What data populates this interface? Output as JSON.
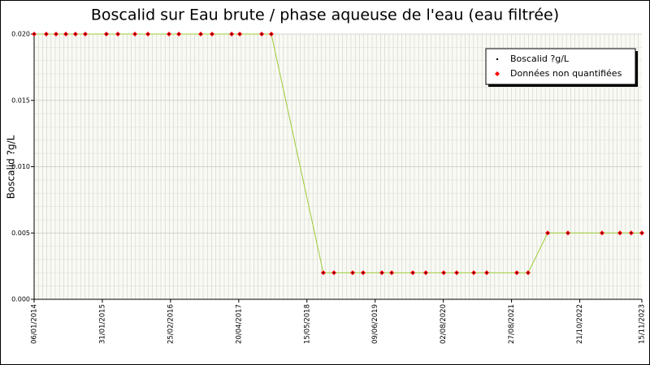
{
  "chart_data": {
    "type": "line",
    "title": "Boscalid sur Eau brute / phase aqueuse de l'eau (eau filtrée)",
    "y_label": "Boscalid ?g/L",
    "x": [
      0,
      72,
      130,
      188,
      245,
      303,
      428,
      496,
      597,
      674,
      799,
      857,
      987,
      1054,
      1170,
      1218,
      1348,
      1405,
      1713,
      1776,
      1887,
      1949,
      2060,
      2118,
      2243,
      2320,
      2426,
      2503,
      2604,
      2681,
      2859,
      2926,
      3042,
      3162,
      3364,
      3470,
      3537,
      3600
    ],
    "series": [
      {
        "name": "Boscalid ?g/L",
        "color": "#99cc33",
        "marker_color": "#000000",
        "values": [
          0.02,
          0.02,
          0.02,
          0.02,
          0.02,
          0.02,
          0.02,
          0.02,
          0.02,
          0.02,
          0.02,
          0.02,
          0.02,
          0.02,
          0.02,
          0.02,
          0.02,
          0.02,
          0.002,
          0.002,
          0.002,
          0.002,
          0.002,
          0.002,
          0.002,
          0.002,
          0.002,
          0.002,
          0.002,
          0.002,
          0.002,
          0.002,
          0.005,
          0.005,
          0.005,
          0.005,
          0.005,
          0.005
        ]
      },
      {
        "name": "Données non quantifiées",
        "color": "#ff0000",
        "values": [
          0.02,
          0.02,
          0.02,
          0.02,
          0.02,
          0.02,
          0.02,
          0.02,
          0.02,
          0.02,
          0.02,
          0.02,
          0.02,
          0.02,
          0.02,
          0.02,
          0.02,
          0.02,
          0.002,
          0.002,
          0.002,
          0.002,
          0.002,
          0.002,
          0.002,
          0.002,
          0.002,
          0.002,
          0.002,
          0.002,
          0.002,
          0.002,
          0.005,
          0.005,
          0.005,
          0.005,
          0.005,
          0.005
        ]
      }
    ],
    "xlim": [
      0,
      3600
    ],
    "xticks": [
      {
        "value": 0,
        "label": "06/01/2014"
      },
      {
        "value": 404,
        "label": "31/01/2015"
      },
      {
        "value": 808,
        "label": "25/02/2016"
      },
      {
        "value": 1212,
        "label": "20/04/2017"
      },
      {
        "value": 1616,
        "label": "15/05/2018"
      },
      {
        "value": 2020,
        "label": "09/06/2019"
      },
      {
        "value": 2424,
        "label": "02/08/2020"
      },
      {
        "value": 2828,
        "label": "27/08/2021"
      },
      {
        "value": 3232,
        "label": "21/10/2022"
      },
      {
        "value": 3600,
        "label": "15/11/2023"
      }
    ],
    "ylim": [
      0,
      0.02
    ],
    "yticks": [
      {
        "value": 0,
        "label": "0.000"
      },
      {
        "value": 0.005,
        "label": "0.005"
      },
      {
        "value": 0.01,
        "label": "0.010"
      },
      {
        "value": 0.015,
        "label": "0.015"
      },
      {
        "value": 0.02,
        "label": "0.020"
      }
    ],
    "grid": true,
    "legend": "upper right"
  }
}
